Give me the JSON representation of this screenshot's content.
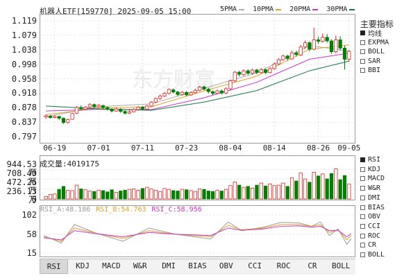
{
  "header": {
    "title": "机器人ETF[159770] 2025-09-05 15:00",
    "legend": [
      {
        "label": "5PMA",
        "color": "#aaaaaa"
      },
      {
        "label": "10PMA",
        "color": "#e0a020"
      },
      {
        "label": "20PMA",
        "color": "#cc33cc"
      },
      {
        "label": "30PMA",
        "color": "#117744"
      }
    ]
  },
  "sidebar": {
    "title": "主要指标",
    "items": [
      {
        "label": "均线",
        "checked": true
      },
      {
        "label": "EXPMA",
        "checked": false
      },
      {
        "label": "BOLL",
        "checked": false
      },
      {
        "label": "SAR",
        "checked": false
      },
      {
        "label": "BBI",
        "checked": false
      }
    ],
    "lower_items": [
      {
        "label": "RSI",
        "checked": true
      },
      {
        "label": "KDJ",
        "checked": false
      },
      {
        "label": "MACD",
        "checked": false
      },
      {
        "label": "W&R",
        "checked": false
      },
      {
        "label": "DMI",
        "checked": false
      },
      {
        "label": "BIAS",
        "checked": false
      },
      {
        "label": "OBV",
        "checked": false
      },
      {
        "label": "CCI",
        "checked": false
      },
      {
        "label": "ROC",
        "checked": false
      },
      {
        "label": "CR",
        "checked": false
      },
      {
        "label": "BOLL",
        "checked": false
      }
    ]
  },
  "watermark": "东方财富",
  "price_axis": [
    "1.119",
    "1.079",
    "1.038",
    "0.998",
    "0.958",
    "0.918",
    "0.878",
    "0.837",
    "0.797"
  ],
  "x_ticks": [
    "06-19",
    "07-01",
    "07-11",
    "07-23",
    "08-04",
    "08-14",
    "08-26",
    "09-05"
  ],
  "volume": {
    "label": "成交量:4019175",
    "axis": [
      "944.53万",
      "708.40万",
      "472.26万",
      "236.13万",
      "0"
    ]
  },
  "rsi": {
    "labels": [
      {
        "text": "RSI_A:48.186",
        "color": "#999999"
      },
      {
        "text": "RSI_B:54.763",
        "color": "#e0a020"
      },
      {
        "text": "RSI_C:58.956",
        "color": "#cc33cc"
      }
    ],
    "axis": [
      "102",
      "58",
      "15"
    ]
  },
  "tabs": [
    "RSI",
    "KDJ",
    "MACD",
    "W&R",
    "DMI",
    "BIAS",
    "OBV",
    "CCI",
    "ROC",
    "CR",
    "BOLL"
  ],
  "active_tab": "RSI",
  "colors": {
    "up": "#e02020",
    "down": "#008000",
    "grid": "#cccccc"
  },
  "chart_data": {
    "type": "candlestick",
    "title": "机器人ETF[159770] 2025-09-05 15:00",
    "ylim": [
      0.797,
      1.119
    ],
    "candles": [
      [
        0.852,
        0.855,
        0.858,
        0.846
      ],
      [
        0.854,
        0.85,
        0.857,
        0.847
      ],
      [
        0.85,
        0.853,
        0.856,
        0.848
      ],
      [
        0.853,
        0.848,
        0.855,
        0.843
      ],
      [
        0.848,
        0.836,
        0.85,
        0.832
      ],
      [
        0.837,
        0.844,
        0.847,
        0.833
      ],
      [
        0.845,
        0.861,
        0.863,
        0.844
      ],
      [
        0.862,
        0.878,
        0.882,
        0.86
      ],
      [
        0.878,
        0.874,
        0.884,
        0.87
      ],
      [
        0.873,
        0.879,
        0.882,
        0.871
      ],
      [
        0.879,
        0.886,
        0.89,
        0.876
      ],
      [
        0.886,
        0.88,
        0.889,
        0.876
      ],
      [
        0.88,
        0.884,
        0.888,
        0.877
      ],
      [
        0.883,
        0.878,
        0.886,
        0.874
      ],
      [
        0.878,
        0.873,
        0.881,
        0.869
      ],
      [
        0.873,
        0.868,
        0.876,
        0.864
      ],
      [
        0.868,
        0.874,
        0.878,
        0.866
      ],
      [
        0.873,
        0.867,
        0.876,
        0.863
      ],
      [
        0.867,
        0.862,
        0.87,
        0.858
      ],
      [
        0.862,
        0.866,
        0.871,
        0.86
      ],
      [
        0.866,
        0.872,
        0.876,
        0.864
      ],
      [
        0.872,
        0.879,
        0.882,
        0.869
      ],
      [
        0.879,
        0.874,
        0.882,
        0.87
      ],
      [
        0.873,
        0.882,
        0.886,
        0.872
      ],
      [
        0.882,
        0.893,
        0.896,
        0.88
      ],
      [
        0.893,
        0.903,
        0.906,
        0.89
      ],
      [
        0.903,
        0.91,
        0.914,
        0.899
      ],
      [
        0.91,
        0.917,
        0.921,
        0.907
      ],
      [
        0.917,
        0.928,
        0.931,
        0.914
      ],
      [
        0.927,
        0.921,
        0.931,
        0.917
      ],
      [
        0.921,
        0.914,
        0.924,
        0.909
      ],
      [
        0.914,
        0.92,
        0.924,
        0.911
      ],
      [
        0.92,
        0.913,
        0.923,
        0.909
      ],
      [
        0.913,
        0.919,
        0.922,
        0.91
      ],
      [
        0.919,
        0.926,
        0.93,
        0.916
      ],
      [
        0.926,
        0.935,
        0.938,
        0.923
      ],
      [
        0.935,
        0.929,
        0.939,
        0.925
      ],
      [
        0.929,
        0.922,
        0.932,
        0.917
      ],
      [
        0.922,
        0.917,
        0.925,
        0.912
      ],
      [
        0.917,
        0.924,
        0.928,
        0.914
      ],
      [
        0.924,
        0.918,
        0.928,
        0.914
      ],
      [
        0.918,
        0.93,
        0.934,
        0.915
      ],
      [
        0.93,
        0.952,
        0.956,
        0.927
      ],
      [
        0.952,
        0.976,
        0.98,
        0.948
      ],
      [
        0.976,
        0.97,
        0.98,
        0.964
      ],
      [
        0.969,
        0.98,
        0.984,
        0.965
      ],
      [
        0.98,
        0.973,
        0.984,
        0.968
      ],
      [
        0.973,
        0.982,
        0.986,
        0.969
      ],
      [
        0.982,
        0.975,
        0.986,
        0.97
      ],
      [
        0.975,
        0.983,
        0.988,
        0.972
      ],
      [
        0.983,
        0.975,
        0.986,
        0.97
      ],
      [
        0.975,
        0.986,
        0.99,
        0.973
      ],
      [
        0.986,
        0.999,
        1.003,
        0.983
      ],
      [
        0.999,
        1.011,
        1.015,
        0.996
      ],
      [
        1.011,
        1.021,
        1.025,
        1.008
      ],
      [
        1.021,
        1.014,
        1.025,
        1.008
      ],
      [
        1.013,
        1.03,
        1.036,
        1.011
      ],
      [
        1.03,
        1.025,
        1.036,
        1.019
      ],
      [
        1.024,
        1.046,
        1.052,
        1.021
      ],
      [
        1.046,
        1.058,
        1.064,
        1.041
      ],
      [
        1.058,
        1.04,
        1.062,
        1.034
      ],
      [
        1.04,
        1.066,
        1.1,
        1.037
      ],
      [
        1.066,
        1.062,
        1.075,
        1.055
      ],
      [
        1.062,
        1.073,
        1.084,
        1.058
      ],
      [
        1.073,
        1.063,
        1.082,
        1.058
      ],
      [
        1.063,
        1.033,
        1.068,
        1.027
      ],
      [
        1.033,
        1.066,
        1.078,
        1.029
      ],
      [
        1.066,
        1.043,
        1.076,
        1.036
      ],
      [
        1.043,
        1.012,
        1.05,
        0.983
      ],
      [
        1.012,
        1.034,
        1.038,
        1.005
      ]
    ],
    "ma": {
      "5PMA": [
        [
          0,
          0.852
        ],
        [
          12,
          0.88
        ],
        [
          24,
          0.888
        ],
        [
          36,
          0.931
        ],
        [
          48,
          0.974
        ],
        [
          60,
          1.05
        ],
        [
          69,
          1.035
        ]
      ],
      "10PMA": [
        [
          0,
          0.858
        ],
        [
          12,
          0.876
        ],
        [
          24,
          0.88
        ],
        [
          36,
          0.924
        ],
        [
          48,
          0.965
        ],
        [
          60,
          1.04
        ],
        [
          69,
          1.052
        ]
      ],
      "20PMA": [
        [
          0,
          0.868
        ],
        [
          12,
          0.873
        ],
        [
          24,
          0.872
        ],
        [
          36,
          0.905
        ],
        [
          48,
          0.948
        ],
        [
          60,
          1.012
        ],
        [
          69,
          1.029
        ]
      ],
      "30PMA": [
        [
          0,
          0.882
        ],
        [
          12,
          0.874
        ],
        [
          24,
          0.87
        ],
        [
          36,
          0.893
        ],
        [
          48,
          0.925
        ],
        [
          60,
          0.98
        ],
        [
          69,
          1.007
        ]
      ]
    },
    "volume_max": 944.53,
    "volumes": [
      60,
      110,
      120,
      230,
      300,
      210,
      200,
      330,
      240,
      220,
      190,
      180,
      210,
      200,
      170,
      220,
      160,
      190,
      210,
      230,
      240,
      210,
      250,
      280,
      240,
      210,
      180,
      250,
      230,
      200,
      190,
      230,
      220,
      200,
      180,
      240,
      230,
      190,
      180,
      210,
      190,
      230,
      320,
      410,
      330,
      280,
      300,
      260,
      330,
      380,
      310,
      360,
      320,
      330,
      380,
      300,
      510,
      430,
      620,
      480,
      400,
      640,
      550,
      600,
      480,
      610,
      720,
      460,
      560,
      360
    ],
    "volume_direction": [
      1,
      1,
      1,
      0,
      0,
      1,
      1,
      1,
      0,
      1,
      1,
      0,
      1,
      0,
      0,
      0,
      1,
      0,
      0,
      1,
      1,
      1,
      0,
      1,
      1,
      1,
      1,
      1,
      1,
      0,
      0,
      1,
      0,
      1,
      1,
      1,
      0,
      0,
      0,
      1,
      0,
      1,
      1,
      1,
      0,
      1,
      0,
      1,
      0,
      1,
      0,
      1,
      1,
      1,
      1,
      0,
      1,
      0,
      1,
      1,
      0,
      1,
      0,
      1,
      0,
      0,
      1,
      0,
      0,
      1
    ],
    "rsi_range": [
      15,
      102
    ],
    "rsi_series": {
      "RSI_A": [
        [
          0,
          55
        ],
        [
          4,
          38
        ],
        [
          7,
          80
        ],
        [
          12,
          60
        ],
        [
          18,
          42
        ],
        [
          24,
          72
        ],
        [
          30,
          58
        ],
        [
          38,
          47
        ],
        [
          42,
          86
        ],
        [
          45,
          66
        ],
        [
          50,
          74
        ],
        [
          54,
          85
        ],
        [
          58,
          84
        ],
        [
          61,
          76
        ],
        [
          63,
          86
        ],
        [
          65,
          55
        ],
        [
          67,
          70
        ],
        [
          69,
          35
        ],
        [
          70,
          48
        ]
      ],
      "RSI_B": [
        [
          0,
          52
        ],
        [
          4,
          42
        ],
        [
          7,
          72
        ],
        [
          12,
          60
        ],
        [
          18,
          48
        ],
        [
          24,
          66
        ],
        [
          30,
          58
        ],
        [
          38,
          52
        ],
        [
          42,
          78
        ],
        [
          45,
          68
        ],
        [
          50,
          72
        ],
        [
          54,
          80
        ],
        [
          58,
          80
        ],
        [
          61,
          76
        ],
        [
          63,
          80
        ],
        [
          65,
          62
        ],
        [
          67,
          68
        ],
        [
          69,
          45
        ],
        [
          70,
          55
        ]
      ],
      "RSI_C": [
        [
          0,
          50
        ],
        [
          4,
          45
        ],
        [
          7,
          66
        ],
        [
          12,
          59
        ],
        [
          18,
          52
        ],
        [
          24,
          62
        ],
        [
          30,
          58
        ],
        [
          38,
          55
        ],
        [
          42,
          72
        ],
        [
          45,
          67
        ],
        [
          50,
          70
        ],
        [
          54,
          76
        ],
        [
          58,
          77
        ],
        [
          61,
          74
        ],
        [
          63,
          76
        ],
        [
          65,
          66
        ],
        [
          67,
          67
        ],
        [
          69,
          52
        ],
        [
          70,
          59
        ]
      ]
    }
  }
}
